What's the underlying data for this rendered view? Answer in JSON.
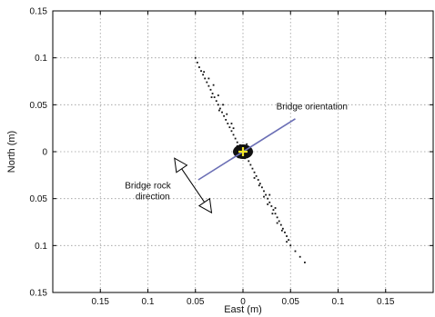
{
  "chart_data": {
    "type": "scatter",
    "xlabel": "East (m)",
    "ylabel": "North (m)",
    "xlim": [
      -0.2,
      0.2
    ],
    "ylim": [
      -0.15,
      0.15
    ],
    "x_ticks": [
      -0.15,
      -0.1,
      -0.05,
      0,
      0.05,
      0.1,
      0.15
    ],
    "x_tick_labels": [
      "0.15",
      "0.1",
      "0.05",
      "0",
      "0.05",
      "0.1",
      "0.15"
    ],
    "y_ticks": [
      0.15,
      0.1,
      0.05,
      0,
      -0.05,
      -0.1,
      -0.15
    ],
    "y_tick_labels": [
      "0.15",
      "0.1",
      "0.05",
      "0",
      "0.05",
      "0.1",
      "0.15"
    ],
    "grid": true,
    "points": [
      [
        -0.05,
        0.1
      ],
      [
        -0.048,
        0.095
      ],
      [
        -0.046,
        0.09
      ],
      [
        -0.044,
        0.086
      ],
      [
        -0.042,
        0.082
      ],
      [
        -0.04,
        0.078
      ],
      [
        -0.038,
        0.074
      ],
      [
        -0.036,
        0.07
      ],
      [
        -0.034,
        0.066
      ],
      [
        -0.032,
        0.062
      ],
      [
        -0.03,
        0.058
      ],
      [
        -0.028,
        0.054
      ],
      [
        -0.026,
        0.05
      ],
      [
        -0.024,
        0.046
      ],
      [
        -0.022,
        0.042
      ],
      [
        -0.02,
        0.038
      ],
      [
        -0.018,
        0.034
      ],
      [
        -0.016,
        0.03
      ],
      [
        -0.014,
        0.026
      ],
      [
        -0.012,
        0.022
      ],
      [
        -0.01,
        0.018
      ],
      [
        -0.008,
        0.014
      ],
      [
        -0.006,
        0.01
      ],
      [
        -0.004,
        0.006
      ],
      [
        -0.002,
        0.003
      ],
      [
        0,
        0
      ],
      [
        0.002,
        -0.003
      ],
      [
        0.004,
        -0.006
      ],
      [
        0.006,
        -0.01
      ],
      [
        0.008,
        -0.014
      ],
      [
        0.01,
        -0.018
      ],
      [
        0.012,
        -0.022
      ],
      [
        0.014,
        -0.026
      ],
      [
        0.016,
        -0.03
      ],
      [
        0.018,
        -0.034
      ],
      [
        0.02,
        -0.038
      ],
      [
        0.022,
        -0.042
      ],
      [
        0.024,
        -0.046
      ],
      [
        0.026,
        -0.05
      ],
      [
        0.028,
        -0.054
      ],
      [
        0.03,
        -0.058
      ],
      [
        0.032,
        -0.062
      ],
      [
        0.034,
        -0.066
      ],
      [
        0.036,
        -0.07
      ],
      [
        0.038,
        -0.074
      ],
      [
        0.04,
        -0.078
      ],
      [
        0.042,
        -0.082
      ],
      [
        0.044,
        -0.086
      ],
      [
        0.046,
        -0.09
      ],
      [
        0.048,
        -0.094
      ],
      [
        0.05,
        -0.1
      ],
      [
        0.055,
        -0.106
      ],
      [
        0.06,
        -0.112
      ],
      [
        0.065,
        -0.118
      ],
      [
        -0.041,
        0.085
      ],
      [
        -0.036,
        0.078
      ],
      [
        -0.031,
        0.071
      ],
      [
        -0.026,
        0.06
      ],
      [
        -0.021,
        0.05
      ],
      [
        -0.017,
        0.04
      ],
      [
        -0.012,
        0.03
      ],
      [
        -0.01,
        0.025
      ],
      [
        -0.025,
        0.044
      ],
      [
        -0.033,
        0.058
      ],
      [
        0.012,
        -0.028
      ],
      [
        0.017,
        -0.036
      ],
      [
        0.022,
        -0.048
      ],
      [
        0.026,
        -0.056
      ],
      [
        0.031,
        -0.066
      ],
      [
        0.036,
        -0.076
      ],
      [
        0.041,
        -0.084
      ],
      [
        0.046,
        -0.096
      ],
      [
        0.034,
        -0.06
      ],
      [
        0.028,
        -0.046
      ],
      [
        -0.006,
        0.004
      ],
      [
        -0.004,
        -0.002
      ],
      [
        0.003,
        0.005
      ],
      [
        0.005,
        0.002
      ],
      [
        -0.003,
        0.007
      ],
      [
        0.002,
        -0.007
      ],
      [
        -0.007,
        0.002
      ],
      [
        0.007,
        -0.002
      ],
      [
        0.004,
        0.008
      ],
      [
        -0.005,
        -0.006
      ],
      [
        0.001,
        0.003
      ],
      [
        -0.001,
        -0.004
      ],
      [
        0.006,
        -0.005
      ],
      [
        -0.006,
        0.006
      ],
      [
        0.003,
        -0.001
      ],
      [
        -0.002,
        0.001
      ],
      [
        0.0,
        0.005
      ],
      [
        0.0,
        -0.005
      ],
      [
        0.008,
        0.001
      ],
      [
        -0.008,
        -0.001
      ]
    ],
    "annotations": [
      {
        "text": "Bridge orientation",
        "x": 0.035,
        "y": 0.045
      },
      {
        "text": "Bridge rock",
        "x": -0.1,
        "y": -0.039
      },
      {
        "text": "direction",
        "x": -0.095,
        "y": -0.051
      }
    ],
    "orientation_line": {
      "x1": -0.047,
      "y1": -0.03,
      "x2": 0.055,
      "y2": 0.035
    },
    "rock_arrow": {
      "x1": -0.072,
      "y1": -0.007,
      "x2": -0.033,
      "y2": -0.065
    },
    "center_marker": {
      "x": 0,
      "y": 0
    },
    "colors": {
      "points": "#111111",
      "orientation_line": "#6b6fb5",
      "center_marker": "#f5e82a",
      "grid": "#9a9a9a"
    }
  }
}
